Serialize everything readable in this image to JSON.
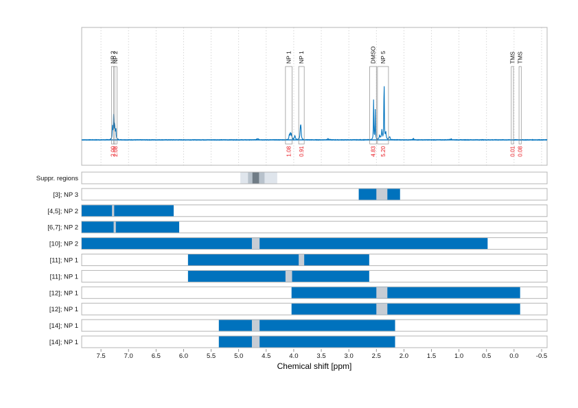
{
  "colors": {
    "accent": "#0072bd",
    "integral_text": "#e8141c",
    "excluded_region": "#c6ccd4",
    "suppr_outer": "#dfe5ec",
    "suppr_mid": "#b8c2cc",
    "suppr_inner": "#707c86",
    "frame": "#b4b4b4",
    "grid": "#cccccc"
  },
  "chart_data": {
    "type": "line",
    "title": "",
    "xlabel": "Chemical shift [ppm]",
    "ylabel": "",
    "xlim": [
      7.85,
      -0.6
    ],
    "x_reversed": true,
    "grid": true,
    "xticks": [
      7.5,
      7.0,
      6.5,
      6.0,
      5.5,
      5.0,
      4.5,
      4.0,
      3.5,
      3.0,
      2.5,
      2.0,
      1.5,
      1.0,
      0.5,
      0.0,
      -0.5
    ],
    "xtick_labels": [
      "7.5",
      "7.0",
      "6.5",
      "6.0",
      "5.5",
      "5.0",
      "4.5",
      "4.0",
      "3.5",
      "3.0",
      "2.5",
      "2.0",
      "1.5",
      "1.0",
      "0.5",
      "0.0",
      "-0.5"
    ],
    "spectrum": {
      "baseline_noise": 0.006,
      "peaks": [
        {
          "x": 7.29,
          "h": 0.12,
          "w": 0.006
        },
        {
          "x": 7.27,
          "h": 0.22,
          "w": 0.006
        },
        {
          "x": 7.25,
          "h": 0.15,
          "w": 0.006
        },
        {
          "x": 7.23,
          "h": 0.1,
          "w": 0.006
        },
        {
          "x": 4.08,
          "h": 0.045,
          "w": 0.008
        },
        {
          "x": 4.06,
          "h": 0.06,
          "w": 0.008
        },
        {
          "x": 4.04,
          "h": 0.045,
          "w": 0.008
        },
        {
          "x": 3.98,
          "h": 0.04,
          "w": 0.01
        },
        {
          "x": 3.88,
          "h": 0.09,
          "w": 0.007
        },
        {
          "x": 3.87,
          "h": 0.11,
          "w": 0.007
        },
        {
          "x": 2.55,
          "h": 0.38,
          "w": 0.004
        },
        {
          "x": 2.52,
          "h": 0.28,
          "w": 0.004
        },
        {
          "x": 2.44,
          "h": 0.04,
          "w": 0.01
        },
        {
          "x": 2.4,
          "h": 0.09,
          "w": 0.008
        },
        {
          "x": 2.36,
          "h": 0.68,
          "w": 0.004
        },
        {
          "x": 2.33,
          "h": 0.07,
          "w": 0.008
        },
        {
          "x": 2.26,
          "h": 0.03,
          "w": 0.01
        },
        {
          "x": 4.65,
          "h": 0.012,
          "w": 0.02
        },
        {
          "x": 3.38,
          "h": 0.01,
          "w": 0.02
        },
        {
          "x": 1.83,
          "h": 0.012,
          "w": 0.01
        },
        {
          "x": 1.15,
          "h": 0.01,
          "w": 0.02
        }
      ]
    },
    "peak_groups": [
      {
        "label": "NP 2",
        "x_start": 7.31,
        "x_end": 7.25,
        "integral": "2.00"
      },
      {
        "label": "NP 2",
        "x_start": 7.27,
        "x_end": 7.21,
        "integral": "2.08"
      },
      {
        "label": "NP 1",
        "x_start": 4.15,
        "x_end": 4.03,
        "integral": "1.08"
      },
      {
        "label": "NP 1",
        "x_start": 3.91,
        "x_end": 3.81,
        "integral": "0.91"
      },
      {
        "label": "DMSO",
        "x_start": 2.62,
        "x_end": 2.5,
        "integral": "4.83"
      },
      {
        "label": "NP 5",
        "x_start": 2.48,
        "x_end": 2.28,
        "integral": "5.20"
      },
      {
        "label": "TMS",
        "x_start": 0.05,
        "x_end": 0.01,
        "integral": "0.01"
      },
      {
        "label": "TMS",
        "x_start": -0.09,
        "x_end": -0.13,
        "integral": "0.08"
      }
    ],
    "tracks": [
      {
        "label": "Suppr. regions",
        "type": "suppression",
        "layers": [
          {
            "from": 4.97,
            "to": 4.3,
            "level": "outer"
          },
          {
            "from": 4.83,
            "to": 4.53,
            "level": "mid"
          },
          {
            "from": 4.75,
            "to": 4.63,
            "level": "inner"
          }
        ]
      },
      {
        "label": "[3]; NP 3",
        "type": "range",
        "from": 2.82,
        "to": 2.07,
        "excluded": [
          [
            2.5,
            2.3
          ]
        ]
      },
      {
        "label": "[4,5]; NP 2",
        "type": "range",
        "from": 7.85,
        "to": 6.18,
        "excluded": [
          [
            7.3,
            7.26
          ]
        ]
      },
      {
        "label": "[6,7]; NP 2",
        "type": "range",
        "from": 7.85,
        "to": 6.08,
        "excluded": [
          [
            7.27,
            7.23
          ]
        ]
      },
      {
        "label": "[10]; NP 2",
        "type": "range",
        "from": 7.85,
        "to": 0.48,
        "excluded": [
          [
            4.76,
            4.62
          ]
        ]
      },
      {
        "label": "[11]; NP 1",
        "type": "range",
        "from": 5.92,
        "to": 2.63,
        "excluded": [
          [
            3.91,
            3.81
          ]
        ]
      },
      {
        "label": "[11]; NP 1",
        "type": "range",
        "from": 5.92,
        "to": 2.63,
        "excluded": [
          [
            4.15,
            4.03
          ]
        ]
      },
      {
        "label": "[12]; NP 1",
        "type": "range",
        "from": 4.04,
        "to": -0.11,
        "excluded": [
          [
            2.5,
            2.3
          ]
        ]
      },
      {
        "label": "[12]; NP 1",
        "type": "range",
        "from": 4.04,
        "to": -0.11,
        "excluded": [
          [
            2.5,
            2.3
          ]
        ]
      },
      {
        "label": "[14]; NP 1",
        "type": "range",
        "from": 5.36,
        "to": 2.16,
        "excluded": [
          [
            4.76,
            4.62
          ]
        ]
      },
      {
        "label": "[14]; NP 1",
        "type": "range",
        "from": 5.36,
        "to": 2.16,
        "excluded": [
          [
            4.76,
            4.62
          ]
        ]
      }
    ]
  }
}
